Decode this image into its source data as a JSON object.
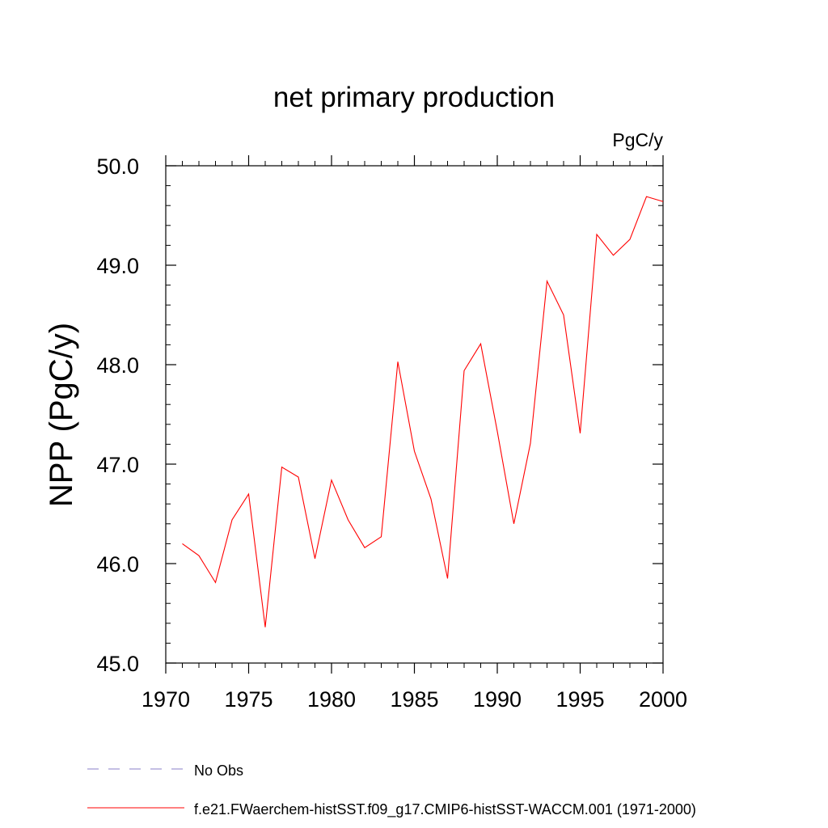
{
  "chart_data": {
    "type": "line",
    "title": "net primary production",
    "units": "PgC/y",
    "ylabel": "NPP  (PgC/y)",
    "xlabel": "",
    "xlim": [
      1970,
      2000
    ],
    "ylim": [
      45.0,
      50.0
    ],
    "x_ticks": [
      "1970",
      "1975",
      "1980",
      "1985",
      "1990",
      "1995",
      "2000"
    ],
    "y_ticks": [
      "45.0",
      "46.0",
      "47.0",
      "48.0",
      "49.0",
      "50.0"
    ],
    "grid": false,
    "legend_position": "bottom",
    "series": [
      {
        "name": "f.e21.FWaerchem-histSST.f09_g17.CMIP6-histSST-WACCM.001 (1971-2000)",
        "color": "#ff0000",
        "style": "solid",
        "x": [
          1971,
          1972,
          1973,
          1974,
          1975,
          1976,
          1977,
          1978,
          1979,
          1980,
          1981,
          1982,
          1983,
          1984,
          1985,
          1986,
          1987,
          1988,
          1989,
          1990,
          1991,
          1992,
          1993,
          1994,
          1995,
          1996,
          1997,
          1998,
          1999,
          2000
        ],
        "y": [
          46.2,
          46.08,
          45.81,
          46.44,
          46.7,
          45.36,
          46.97,
          46.87,
          46.05,
          46.84,
          46.44,
          46.16,
          46.27,
          48.03,
          47.13,
          46.65,
          45.85,
          47.94,
          48.21,
          47.33,
          46.4,
          47.21,
          48.84,
          48.5,
          47.31,
          49.31,
          49.1,
          49.26,
          49.69,
          49.64
        ]
      }
    ],
    "legend": [
      {
        "label": "No Obs",
        "color": "#8a7fc8",
        "style": "dashed"
      },
      {
        "label": "f.e21.FWaerchem-histSST.f09_g17.CMIP6-histSST-WACCM.001 (1971-2000)",
        "color": "#ff0000",
        "style": "solid"
      }
    ]
  }
}
